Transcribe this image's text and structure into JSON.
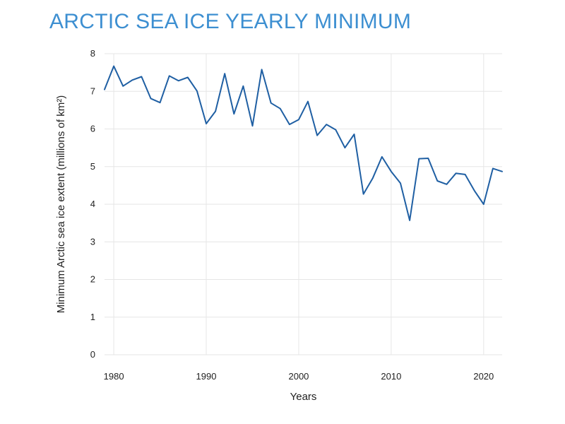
{
  "chart_data": {
    "type": "line",
    "title": "ARCTIC SEA ICE YEARLY MINIMUM",
    "xlabel": "Years",
    "ylabel": "Minimum Arctic sea ice extent (millions of km²)",
    "xlim": [
      1979,
      2022
    ],
    "ylim": [
      0,
      8
    ],
    "xticks": [
      1980,
      1990,
      2000,
      2010,
      2020
    ],
    "yticks": [
      0,
      1,
      2,
      3,
      4,
      5,
      6,
      7,
      8
    ],
    "grid": true,
    "x": [
      1979,
      1980,
      1981,
      1982,
      1983,
      1984,
      1985,
      1986,
      1987,
      1988,
      1989,
      1990,
      1991,
      1992,
      1993,
      1994,
      1995,
      1996,
      1997,
      1998,
      1999,
      2000,
      2001,
      2002,
      2003,
      2004,
      2005,
      2006,
      2007,
      2008,
      2009,
      2010,
      2011,
      2012,
      2013,
      2014,
      2015,
      2016,
      2017,
      2018,
      2019,
      2020,
      2021,
      2022
    ],
    "series": [
      {
        "values": [
          7.05,
          7.67,
          7.14,
          7.3,
          7.39,
          6.81,
          6.7,
          7.41,
          7.28,
          7.37,
          7.01,
          6.14,
          6.47,
          7.47,
          6.4,
          7.14,
          6.08,
          7.58,
          6.69,
          6.54,
          6.12,
          6.25,
          6.73,
          5.83,
          6.12,
          5.98,
          5.5,
          5.86,
          4.27,
          4.69,
          5.26,
          4.87,
          4.56,
          3.57,
          5.21,
          5.22,
          4.62,
          4.53,
          4.82,
          4.79,
          4.36,
          4.0,
          4.95,
          4.87
        ]
      }
    ],
    "colors": {
      "line": "#1f5fa3",
      "title": "#3d8fd1",
      "grid": "#e6e6e6"
    }
  }
}
